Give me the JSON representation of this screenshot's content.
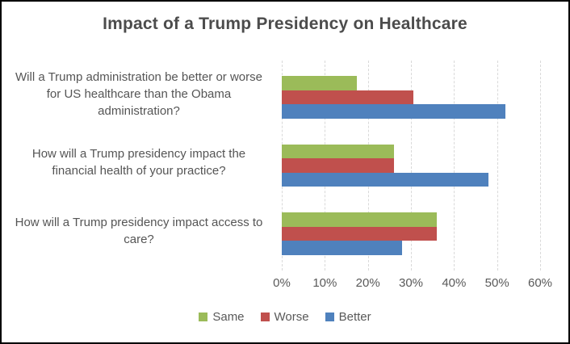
{
  "title": "Impact of a Trump Presidency on Healthcare",
  "colors": {
    "same": "#9BBB59",
    "worse": "#C0504D",
    "better": "#4F81BD",
    "gridline": "#D9D9D9",
    "title_text": "#4C4C4C",
    "axis_text": "#595959",
    "category_text": "#555555",
    "frame_border": "#000000",
    "background": "#FFFFFF"
  },
  "chart_data": {
    "type": "bar",
    "orientation": "horizontal",
    "title": "Impact of a Trump Presidency on Healthcare",
    "categories": [
      "Will a Trump administration be better or worse for US healthcare than the Obama administration?",
      "How will a Trump presidency impact the financial health of your practice?",
      "How will a Trump presidency impact access to care?"
    ],
    "series": [
      {
        "name": "Same",
        "color": "#9BBB59",
        "values": [
          17.5,
          26,
          36
        ]
      },
      {
        "name": "Worse",
        "color": "#C0504D",
        "values": [
          30.5,
          26,
          36
        ]
      },
      {
        "name": "Better",
        "color": "#4F81BD",
        "values": [
          52,
          48,
          28
        ]
      }
    ],
    "xlabel": "",
    "ylabel": "",
    "xlim": [
      0,
      60
    ],
    "x_ticks": [
      "0%",
      "10%",
      "20%",
      "30%",
      "40%",
      "50%",
      "60%"
    ],
    "grid": true,
    "gridline_style": "dashed",
    "legend_position": "bottom",
    "bar_order_top_to_bottom": [
      "Same",
      "Worse",
      "Better"
    ]
  }
}
